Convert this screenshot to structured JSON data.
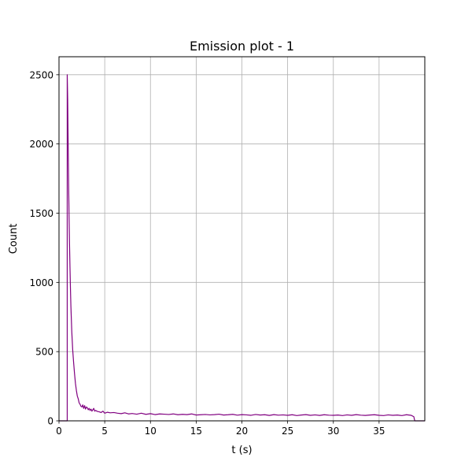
{
  "chart_data": {
    "type": "line",
    "title": "Emission plot - 1",
    "xlabel": "t (s)",
    "ylabel": "Count",
    "xlim": [
      0,
      40
    ],
    "ylim": [
      0,
      2630
    ],
    "xticks": [
      0,
      5,
      10,
      15,
      20,
      25,
      30,
      35
    ],
    "yticks": [
      0,
      500,
      1000,
      1500,
      2000,
      2500
    ],
    "grid": true,
    "line_color": "#800080",
    "series": [
      {
        "x": [
          0,
          0.9,
          0.9,
          0.95,
          1.0,
          1.05,
          1.1,
          1.15,
          1.2,
          1.25,
          1.3,
          1.4,
          1.5,
          1.6,
          1.7,
          1.8,
          1.9,
          2.0,
          2.1,
          2.2,
          2.3,
          2.4,
          2.5,
          2.6,
          2.7,
          2.8,
          2.9,
          3.0,
          3.1,
          3.2,
          3.3,
          3.4,
          3.5,
          3.6,
          3.7,
          3.8,
          3.9,
          4.0,
          4.2,
          4.4,
          4.6,
          4.8,
          5.0,
          5.3,
          5.6,
          6.0,
          6.4,
          6.8,
          7.2,
          7.6,
          8.0,
          8.5,
          9.0,
          9.5,
          10.0,
          10.5,
          11.0,
          11.5,
          12.0,
          12.5,
          13.0,
          13.5,
          14.0,
          14.5,
          15.0,
          15.5,
          16.0,
          16.5,
          17.0,
          17.5,
          18.0,
          18.5,
          19.0,
          19.5,
          20.0,
          20.5,
          21.0,
          21.5,
          22.0,
          22.5,
          23.0,
          23.5,
          24.0,
          24.5,
          25.0,
          25.5,
          26.0,
          26.5,
          27.0,
          27.5,
          28.0,
          28.5,
          29.0,
          29.5,
          30.0,
          30.5,
          31.0,
          31.5,
          32.0,
          32.5,
          33.0,
          33.5,
          34.0,
          34.5,
          35.0,
          35.5,
          36.0,
          36.5,
          37.0,
          37.5,
          38.0,
          38.5,
          38.8,
          38.9,
          39.0,
          40.0
        ],
        "y": [
          0,
          0,
          2500,
          2320,
          2010,
          1720,
          1480,
          1280,
          1110,
          960,
          830,
          640,
          510,
          420,
          340,
          270,
          220,
          180,
          160,
          130,
          120,
          105,
          100,
          115,
          90,
          110,
          85,
          100,
          95,
          80,
          90,
          75,
          85,
          70,
          80,
          90,
          70,
          75,
          68,
          65,
          60,
          70,
          55,
          62,
          58,
          60,
          55,
          52,
          58,
          50,
          53,
          48,
          55,
          47,
          52,
          45,
          50,
          48,
          46,
          50,
          44,
          47,
          45,
          50,
          42,
          44,
          46,
          43,
          45,
          48,
          42,
          44,
          47,
          41,
          45,
          43,
          40,
          46,
          42,
          44,
          39,
          45,
          41,
          43,
          40,
          44,
          38,
          42,
          45,
          40,
          43,
          39,
          44,
          41,
          40,
          42,
          38,
          43,
          40,
          45,
          41,
          39,
          42,
          44,
          40,
          38,
          43,
          40,
          42,
          38,
          44,
          40,
          30,
          0,
          0,
          0
        ]
      }
    ]
  }
}
